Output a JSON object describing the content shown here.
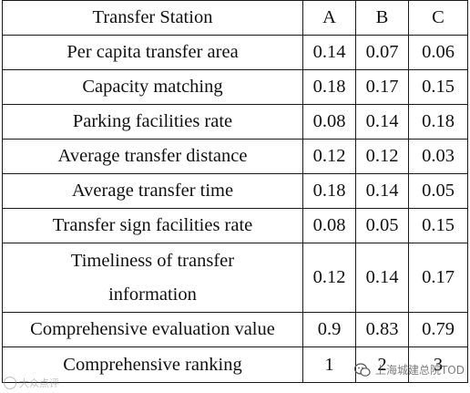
{
  "table": {
    "header": [
      "Transfer Station",
      "A",
      "B",
      "C"
    ],
    "rows": [
      {
        "label": "Per capita transfer area",
        "values": [
          "0.14",
          "0.07",
          "0.06"
        ]
      },
      {
        "label": "Capacity matching",
        "values": [
          "0.18",
          "0.17",
          "0.15"
        ]
      },
      {
        "label": "Parking facilities rate",
        "values": [
          "0.08",
          "0.14",
          "0.18"
        ]
      },
      {
        "label": "Average transfer distance",
        "values": [
          "0.12",
          "0.12",
          "0.03"
        ]
      },
      {
        "label": "Average transfer time",
        "values": [
          "0.18",
          "0.14",
          "0.05"
        ]
      },
      {
        "label": "Transfer sign facilities rate",
        "values": [
          "0.08",
          "0.05",
          "0.15"
        ]
      },
      {
        "label_line1": "Timeliness of transfer",
        "label_line2": "information",
        "values": [
          "0.12",
          "0.14",
          "0.17"
        ]
      },
      {
        "label": "Comprehensive evaluation value",
        "values": [
          "0.9",
          "0.83",
          "0.79"
        ]
      },
      {
        "label": "Comprehensive ranking",
        "values": [
          "1",
          "2",
          "3"
        ]
      }
    ]
  },
  "watermarks": {
    "left": "大众点评",
    "right": "上海城建总院TOD",
    "left_icon": "circle-logo-icon",
    "right_icon": "wechat-icon"
  }
}
